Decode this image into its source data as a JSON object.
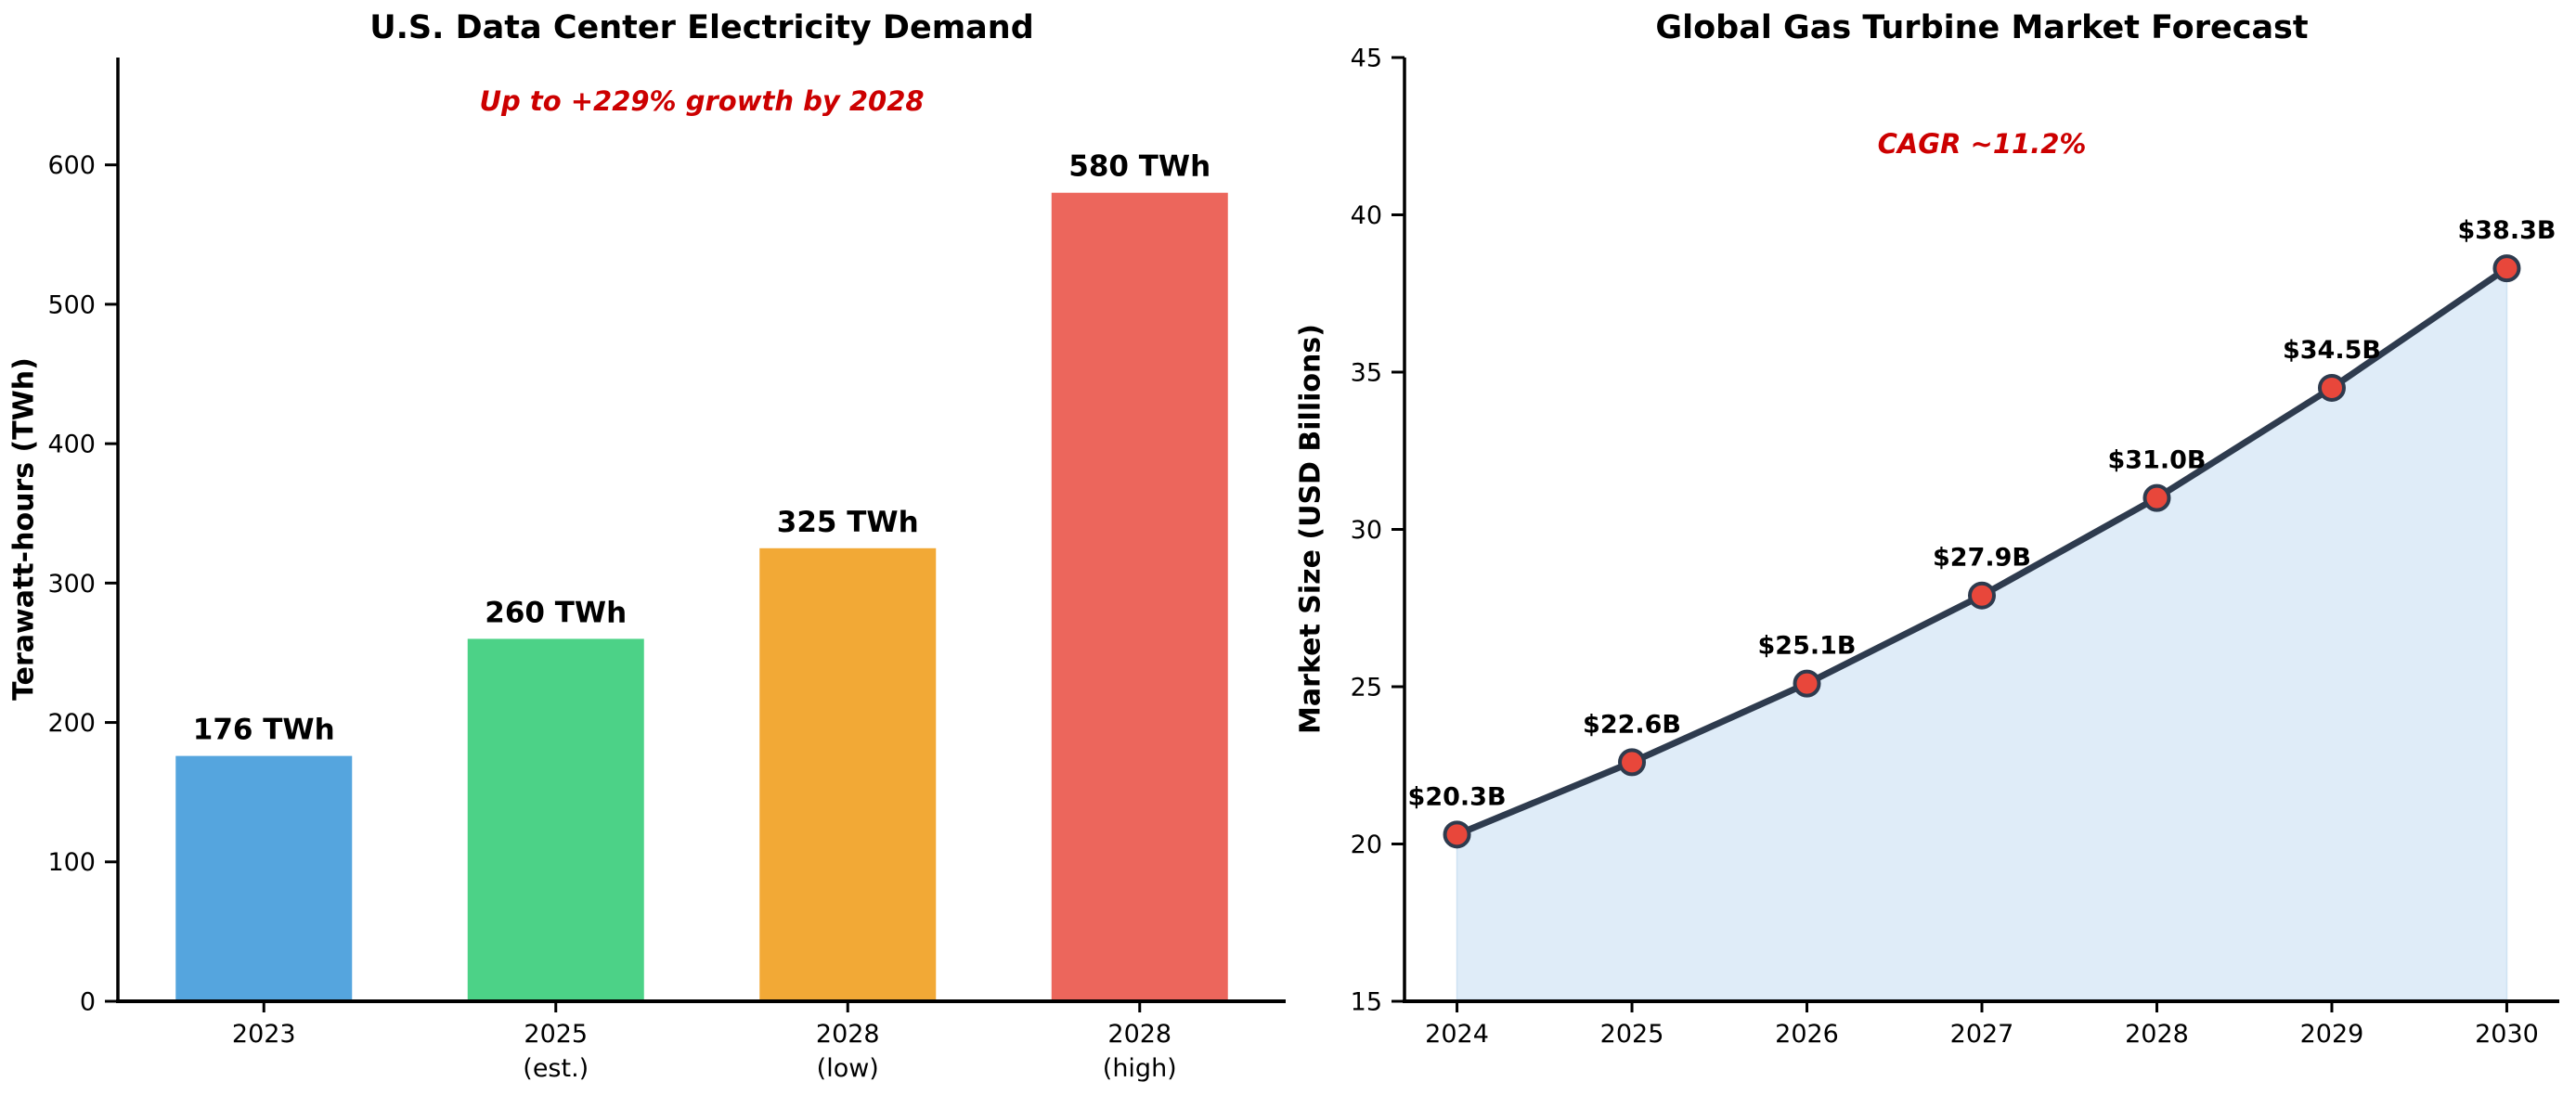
{
  "page": {
    "background_color": "#ffffff",
    "text_color": "#000000",
    "accent_red": "#cc0000"
  },
  "chart_data": [
    {
      "type": "bar",
      "title": "U.S. Data Center Electricity Demand",
      "annotation": "Up to +229% growth by 2028",
      "annotation_color": "#cc0000",
      "ylabel": "Terawatt-hours (TWh)",
      "xlabel": "",
      "categories": [
        "2023",
        "2025\n(est.)",
        "2028\n(low)",
        "2028\n(high)"
      ],
      "values": [
        176,
        260,
        325,
        580
      ],
      "bar_labels": [
        "176 TWh",
        "260 TWh",
        "325 TWh",
        "580 TWh"
      ],
      "bar_colors": [
        "#55a5de",
        "#4cd287",
        "#f2a936",
        "#ec665c"
      ],
      "ylim": [
        0,
        677
      ],
      "yticks": [
        0,
        100,
        200,
        300,
        400,
        500,
        600
      ],
      "grid": false,
      "legend": null
    },
    {
      "type": "area",
      "title": "Global Gas Turbine Market Forecast",
      "annotation": "CAGR ~11.2%",
      "annotation_color": "#cc0000",
      "ylabel": "Market Size (USD Billions)",
      "xlabel": "",
      "x": [
        2024,
        2025,
        2026,
        2027,
        2028,
        2029,
        2030
      ],
      "x_tick_labels": [
        "2024",
        "2025",
        "2026",
        "2027",
        "2028",
        "2029",
        "2030"
      ],
      "values": [
        20.3,
        22.6,
        25.1,
        27.9,
        31.0,
        34.5,
        38.3
      ],
      "point_labels": [
        "$20.3B",
        "$22.6B",
        "$25.1B",
        "$27.9B",
        "$31.0B",
        "$34.5B",
        "$38.3B"
      ],
      "line_color": "#2e3b4e",
      "marker_color": "#e8473b",
      "marker_edge_color": "#2e3b4e",
      "fill_color": "#dfecf8",
      "fill_edge_color": "#cfe2f3",
      "ylim": [
        15,
        45
      ],
      "yticks": [
        15,
        20,
        25,
        30,
        35,
        40,
        45
      ],
      "grid": false,
      "legend": null
    }
  ]
}
